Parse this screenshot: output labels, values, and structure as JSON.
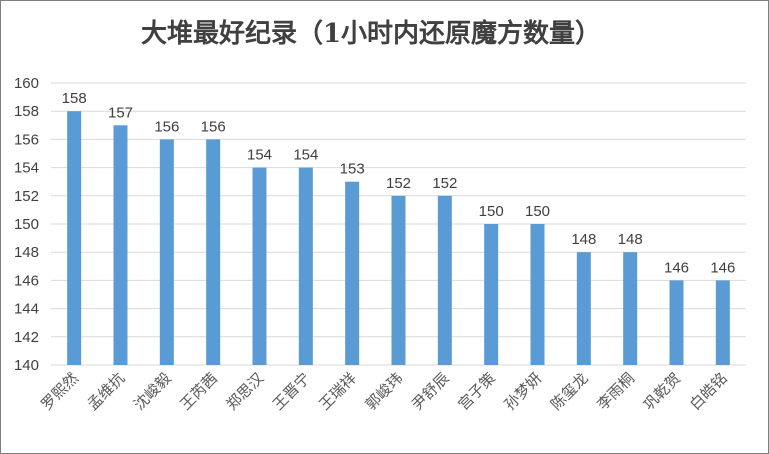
{
  "chart_data": {
    "type": "bar",
    "title": "大堆最好纪录（1小时内还原魔方数量）",
    "xlabel": "",
    "ylabel": "",
    "categories": [
      "罗熙然",
      "孟维抗",
      "沈峻毅",
      "王芮茜",
      "郑思汉",
      "王晋宁",
      "王瑞祥",
      "郭峻玮",
      "尹舒辰",
      "宫子策",
      "孙梦妍",
      "陈玺龙",
      "李雨桐",
      "巩乾贺",
      "白皓铭"
    ],
    "values": [
      158,
      157,
      156,
      156,
      154,
      154,
      153,
      152,
      152,
      150,
      150,
      148,
      148,
      146,
      146
    ],
    "ylim": [
      140,
      160
    ],
    "yticks": [
      140,
      142,
      144,
      146,
      148,
      150,
      152,
      154,
      156,
      158,
      160
    ],
    "grid": true,
    "legend": "none",
    "bar_color": "#5b9bd5"
  }
}
